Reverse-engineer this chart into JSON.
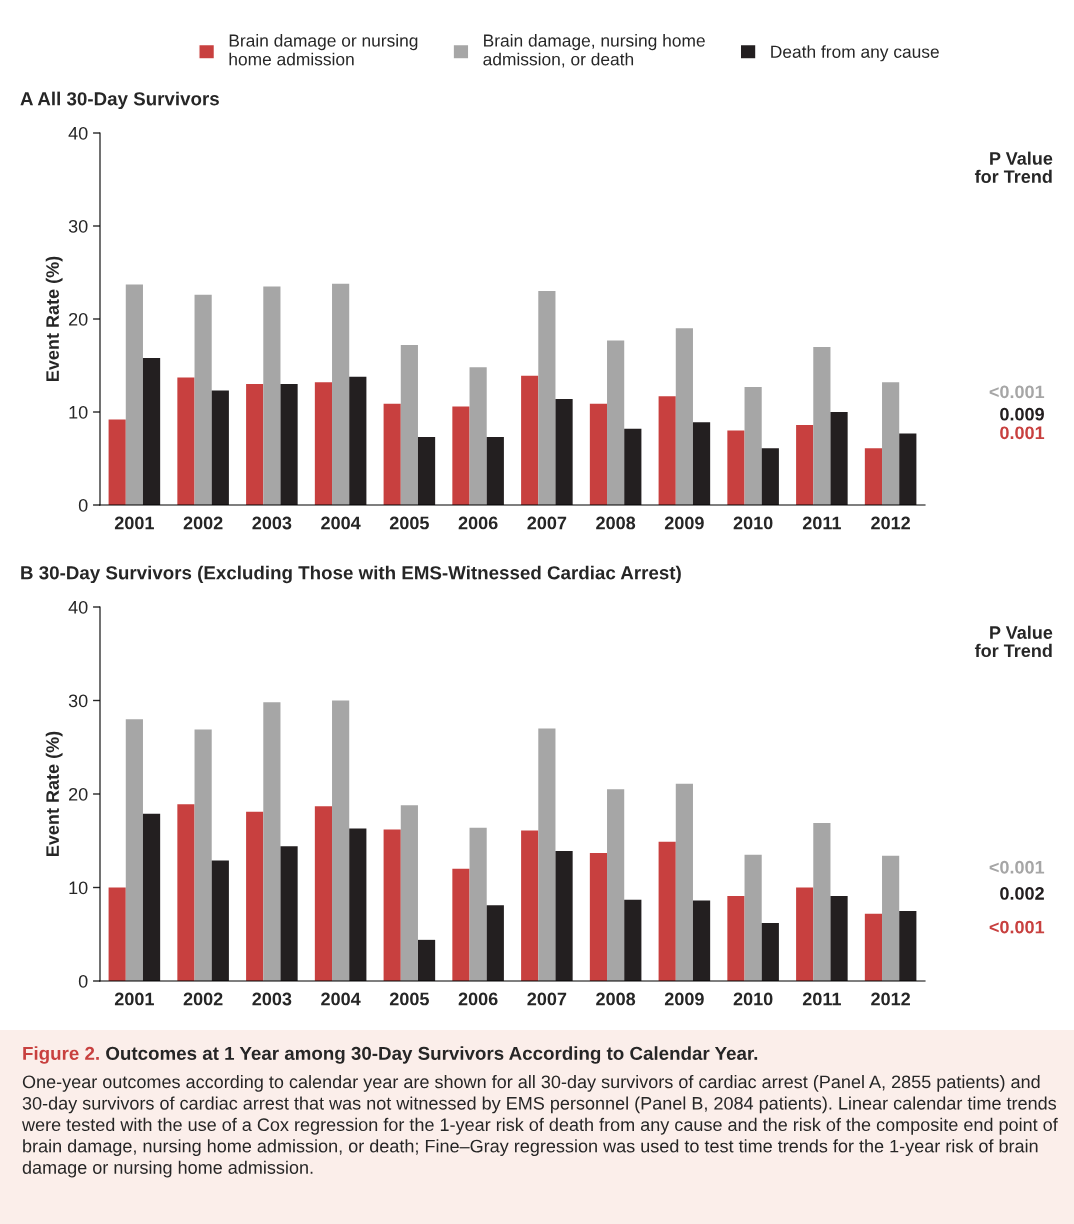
{
  "chart_data": [
    {
      "type": "bar",
      "title": "A All 30-Day Survivors",
      "ylabel": "Event Rate (%)",
      "categories": [
        "2001",
        "2002",
        "2003",
        "2004",
        "2005",
        "2006",
        "2007",
        "2008",
        "2009",
        "2010",
        "2011",
        "2012"
      ],
      "series": [
        {
          "name": "Brain damage or nursing home admission",
          "color": "#c8403f",
          "values": [
            9.2,
            13.7,
            13.0,
            13.2,
            10.9,
            10.6,
            13.9,
            10.9,
            11.7,
            8.0,
            8.6,
            6.1
          ]
        },
        {
          "name": "Brain damage, nursing home admission, or death",
          "color": "#a6a6a6",
          "values": [
            23.7,
            22.6,
            23.5,
            23.8,
            17.2,
            14.8,
            23.0,
            17.7,
            19.0,
            12.7,
            17.0,
            13.2
          ]
        },
        {
          "name": "Death from any cause",
          "color": "#231f20",
          "values": [
            15.8,
            12.3,
            13.0,
            13.8,
            7.3,
            7.3,
            11.4,
            8.2,
            8.9,
            6.1,
            10.0,
            7.7
          ]
        }
      ],
      "ylim": [
        0,
        40
      ],
      "yticks": [
        0,
        10,
        20,
        30,
        40
      ],
      "grid": false,
      "legend": "top",
      "annotations": [
        "P Value for Trend",
        "<0.001",
        "0.009",
        "0.001"
      ]
    },
    {
      "type": "bar",
      "title": "B 30-Day Survivors (Excluding Those with EMS-Witnessed Cardiac Arrest)",
      "ylabel": "Event Rate (%)",
      "categories": [
        "2001",
        "2002",
        "2003",
        "2004",
        "2005",
        "2006",
        "2007",
        "2008",
        "2009",
        "2010",
        "2011",
        "2012"
      ],
      "series": [
        {
          "color": "#c8403f",
          "values": [
            10.0,
            18.9,
            18.1,
            18.7,
            16.2,
            12.0,
            16.1,
            13.7,
            14.9,
            9.1,
            10.0,
            7.2
          ]
        },
        {
          "color": "#a6a6a6",
          "values": [
            28.0,
            26.9,
            29.8,
            30.0,
            18.8,
            16.4,
            27.0,
            20.5,
            21.1,
            13.5,
            16.9,
            13.4
          ]
        },
        {
          "color": "#231f20",
          "values": [
            17.9,
            12.9,
            14.4,
            16.3,
            4.4,
            8.1,
            13.9,
            8.7,
            8.6,
            6.2,
            9.1,
            7.5
          ]
        }
      ],
      "ylim": [
        0,
        40
      ],
      "yticks": [
        0,
        10,
        20,
        30,
        40
      ],
      "grid": false,
      "annotations": [
        "P Value for Trend",
        "<0.001",
        "0.002",
        "<0.001",
        "Figure 2.",
        "Outcomes at 1 Year among 30-Day Survivors According to Calendar Year.",
        "One-year outcomes according to calendar year are shown for all 30-day survivors of cardiac arrest (Panel A, 2855 patients) and 30-day survivors of cardiac arrest that was not witnessed by EMS personnel (Panel B, 2084 patients). Linear calendar time trends were tested with the use of a Cox regression for the 1-year risk of death from any cause and the risk of the composite end point of brain damage, nursing home admission, or death; Fine–Gray regression was used to test time trends for the 1-year risk of brain damage or nursing home admission."
      ]
    }
  ]
}
